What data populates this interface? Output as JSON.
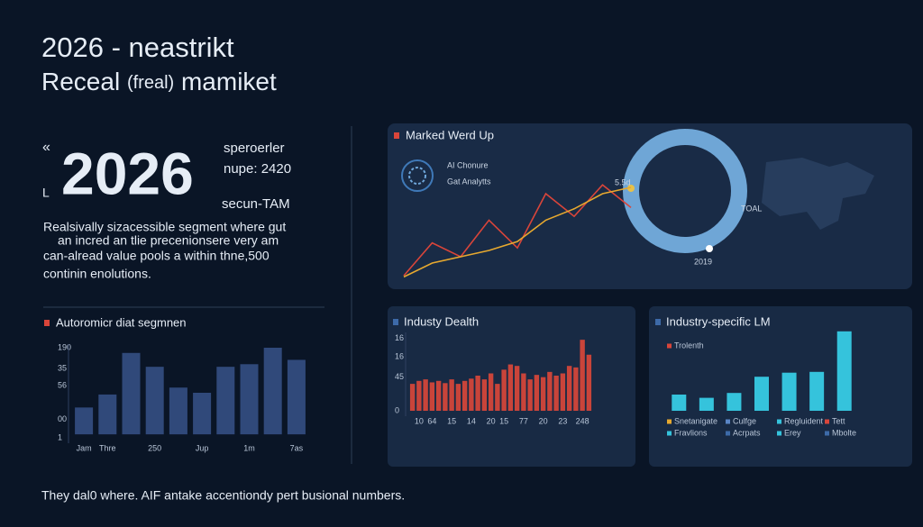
{
  "header": {
    "title": "2026 - neastrikt",
    "subtitle": [
      "Receal",
      "(freal)",
      "mamiket"
    ]
  },
  "hero": {
    "marker_top": "«",
    "marker_bottom": "L",
    "year": "2026",
    "side": [
      "speroerler",
      "nupe: 2420",
      "secun-TAM"
    ],
    "description": [
      "Realsivally sizacessible segment where gut",
      "an incred an tlie precenionsere very am",
      "can-alread value pools a within thne,500",
      "continin enolutions."
    ]
  },
  "footer": "They dal0 where. AIF antake accentiondy pert busional numbers.",
  "chart_data": [
    {
      "type": "line",
      "title": "Marked Werd Up",
      "annotations": [
        "AI Chonure",
        "Gat Analytts",
        "5.5d",
        "TOAL",
        "2019"
      ],
      "categories": [
        null,
        null,
        null,
        null,
        null,
        null,
        null,
        null,
        null
      ],
      "ylim": [
        0,
        100
      ],
      "series": [
        {
          "color": "#d9453a",
          "values": [
            10,
            36,
            25,
            54,
            32,
            75,
            57,
            82,
            64
          ]
        },
        {
          "color": "#e7a92f",
          "values": [
            9,
            20,
            25,
            30,
            37,
            54,
            63,
            75,
            80
          ]
        }
      ]
    },
    {
      "type": "bar",
      "title": "Autoromicr diat segmnen",
      "color": "#30497a",
      "categories": [
        "Jam",
        "Thre",
        null,
        "250",
        null,
        "Jup",
        null,
        "1m",
        null,
        "7as"
      ],
      "values": [
        31,
        46,
        94,
        78,
        54,
        48,
        78,
        81,
        100,
        86
      ],
      "ylim": [
        -4,
        100
      ],
      "yticks": [
        {
          "value": -4,
          "label": "1"
        },
        {
          "value": 17,
          "label": "00"
        },
        56,
        {
          "value": 76,
          "label": "35"
        },
        {
          "value": 100,
          "label": "190"
        }
      ]
    },
    {
      "type": "bar",
      "title": "Industy Dealth",
      "color": "#c9443a",
      "categories": [
        null,
        "10",
        null,
        "64",
        null,
        null,
        "15",
        null,
        null,
        "14",
        null,
        null,
        "20",
        null,
        "15",
        null,
        null,
        "77",
        null,
        null,
        "20",
        null,
        null,
        "23",
        null,
        null,
        "248",
        null
      ],
      "values": [
        36,
        40,
        42,
        38,
        40,
        37,
        42,
        36,
        40,
        43,
        47,
        42,
        50,
        36,
        55,
        62,
        60,
        50,
        42,
        48,
        45,
        52,
        47,
        50,
        60,
        58,
        95,
        75
      ],
      "ylim": [
        0,
        100
      ],
      "yticks": [
        0,
        45,
        {
          "value": 72,
          "label": "16"
        },
        {
          "value": 97,
          "label": "16"
        }
      ]
    },
    {
      "type": "bar",
      "title": "Industry-specific LM",
      "color": "#35c3dc",
      "values": [
        20,
        16,
        22,
        42,
        47,
        48,
        98
      ],
      "ylim": [
        0,
        100
      ],
      "legend": [
        {
          "name": "Trolenth",
          "color": "#d9453a"
        },
        {
          "name": "Snetanigate",
          "color": "#e7a92f"
        },
        {
          "name": "Culfge",
          "color": "#5a86c6"
        },
        {
          "name": "Regluident",
          "color": "#35c3dc"
        },
        {
          "name": "Tett",
          "color": "#d9453a"
        },
        {
          "name": "Fravlions",
          "color": "#35c3dc"
        },
        {
          "name": "Acrpats",
          "color": "#3d6aa8"
        },
        {
          "name": "Erey",
          "color": "#35c3dc"
        },
        {
          "name": "Mbolte",
          "color": "#3d6aa8"
        }
      ]
    }
  ]
}
